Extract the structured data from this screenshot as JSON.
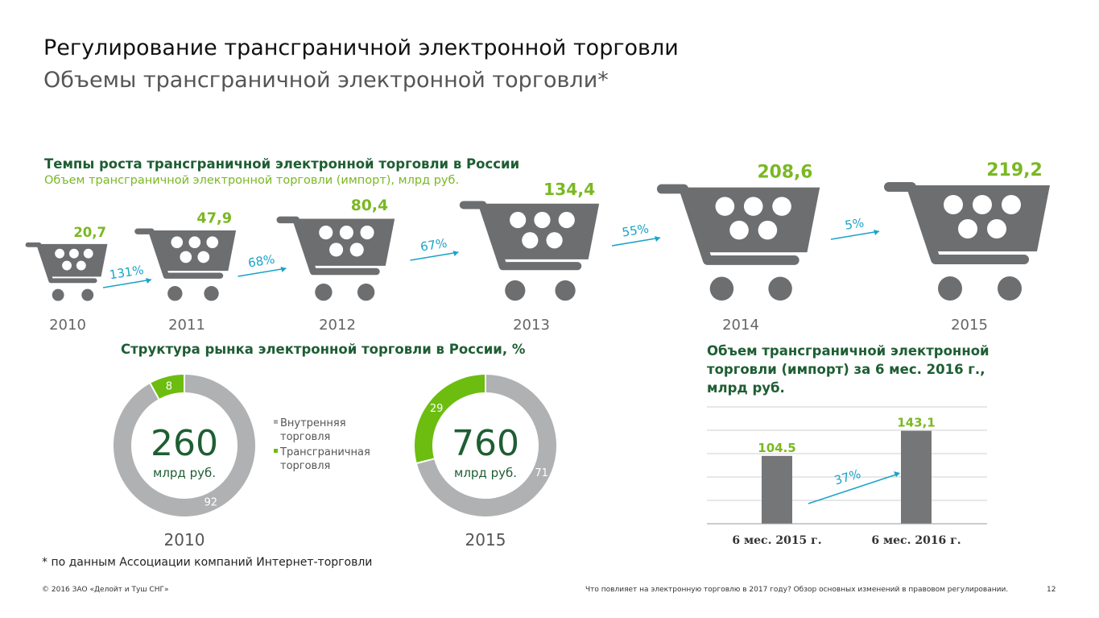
{
  "header": {
    "title": "Регулирование трансграничной электронной торговли",
    "subtitle": "Объемы трансграничной электронной торговли*"
  },
  "growth_section": {
    "title": "Темпы роста трансграничной электронной торговли в России",
    "subtitle": "Объем трансграничной электронной торговли (импорт), млрд руб."
  },
  "structure_section": {
    "title": "Структура рынка электронной торговли в России, %",
    "legend": [
      "Внутренняя торговля",
      "Трансграничная торговля"
    ]
  },
  "half_year_section": {
    "title_line1": "Объем трансграничной электронной",
    "title_line2": "торговли (импорт) за 6 мес. 2016 г.,",
    "title_line3": "млрд руб."
  },
  "colors": {
    "cart": "#6d6e70",
    "green_value": "#7ab823",
    "dark_green": "#1e5e33",
    "growth_arrow": "#1aa3c9",
    "donut_grey": "#b0b1b3",
    "donut_green": "#6cbd10",
    "bar_grey": "#757677"
  },
  "chart_data": [
    {
      "type": "bar",
      "title": "Темпы роста трансграничной электронной торговли в России",
      "subtitle": "Объем трансграничной электронной торговли (импорт), млрд руб.",
      "categories": [
        "2010",
        "2011",
        "2012",
        "2013",
        "2014",
        "2015"
      ],
      "values": [
        20.7,
        47.9,
        80.4,
        134.4,
        208.6,
        219.2
      ],
      "value_labels": [
        "20,7",
        "47,9",
        "80,4",
        "134,4",
        "208,6",
        "219,2"
      ],
      "growth_labels": [
        "131%",
        "68%",
        "67%",
        "55%",
        "5%"
      ],
      "mark": "shopping-cart-icon"
    },
    {
      "type": "pie",
      "title": "Структура рынка электронной торговли в России, %",
      "total_label_line1": "260",
      "total_label_line2": "млрд руб.",
      "year": "2010",
      "series": [
        {
          "name": "Внутренняя торговля",
          "value": 92,
          "label": "92"
        },
        {
          "name": "Трансграничная торговля",
          "value": 8,
          "label": "8"
        }
      ]
    },
    {
      "type": "pie",
      "title": "Структура рынка электронной торговли в России, %",
      "total_label_line1": "760",
      "total_label_line2": "млрд руб.",
      "year": "2015",
      "series": [
        {
          "name": "Внутренняя торговля",
          "value": 71,
          "label": "71"
        },
        {
          "name": "Трансграничная торговля",
          "value": 29,
          "label": "29"
        }
      ]
    },
    {
      "type": "bar",
      "title": "Объем трансграничной электронной торговли (импорт) за 6 мес. 2016 г., млрд руб.",
      "categories": [
        "6 мес. 2015 г.",
        "6 мес. 2016 г."
      ],
      "values": [
        104.5,
        143.1
      ],
      "value_labels": [
        "104.5",
        "143,1"
      ],
      "growth_label": "37%",
      "ylim": [
        0,
        180
      ],
      "grid": true
    }
  ],
  "footnote": "* по данным Ассоциации компаний Интернет-торговли",
  "footer": {
    "copyright": "© 2016 ЗАО «Делойт и Туш СНГ»",
    "report_title": "Что повлияет на электронную торговлю в 2017 году? Обзор основных изменений в правовом регулировании.",
    "page_number": "12"
  }
}
